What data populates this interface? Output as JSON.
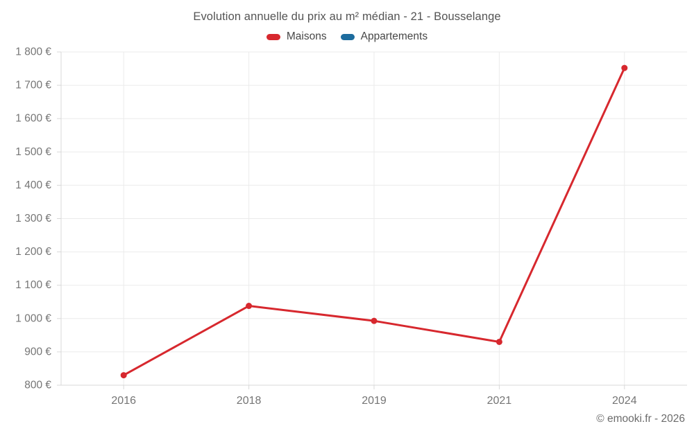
{
  "title": "Evolution annuelle du prix au m² médian - 21 - Bousselange",
  "legend": {
    "items": [
      {
        "label": "Maisons",
        "color": "#d7282e"
      },
      {
        "label": "Appartements",
        "color": "#1d6c9e"
      }
    ]
  },
  "copyright": "© emooki.fr - 2026",
  "chart_data": {
    "type": "line",
    "title": "Evolution annuelle du prix au m² médian - 21 - Bousselange",
    "categories": [
      "2016",
      "2018",
      "2019",
      "2021",
      "2024"
    ],
    "series": [
      {
        "name": "Maisons",
        "color": "#d7282e",
        "values": [
          830,
          1038,
          993,
          930,
          1752
        ]
      },
      {
        "name": "Appartements",
        "color": "#1d6c9e",
        "values": []
      }
    ],
    "xlabel": "",
    "ylabel": "",
    "ylim": [
      800,
      1800
    ],
    "y_tick_step": 100,
    "y_tick_labels": [
      "800 €",
      "900 €",
      "1 000 €",
      "1 100 €",
      "1 200 €",
      "1 300 €",
      "1 400 €",
      "1 500 €",
      "1 600 €",
      "1 700 €",
      "1 800 €"
    ],
    "grid": true,
    "legend_position": "top"
  },
  "colors": {
    "background": "#ffffff",
    "gridline": "#ebebeb",
    "axis": "#d8d8d8",
    "tick_label": "#757575",
    "title_text": "#545454",
    "legend_text": "#474747",
    "copyright_text": "#6b6b6b"
  }
}
